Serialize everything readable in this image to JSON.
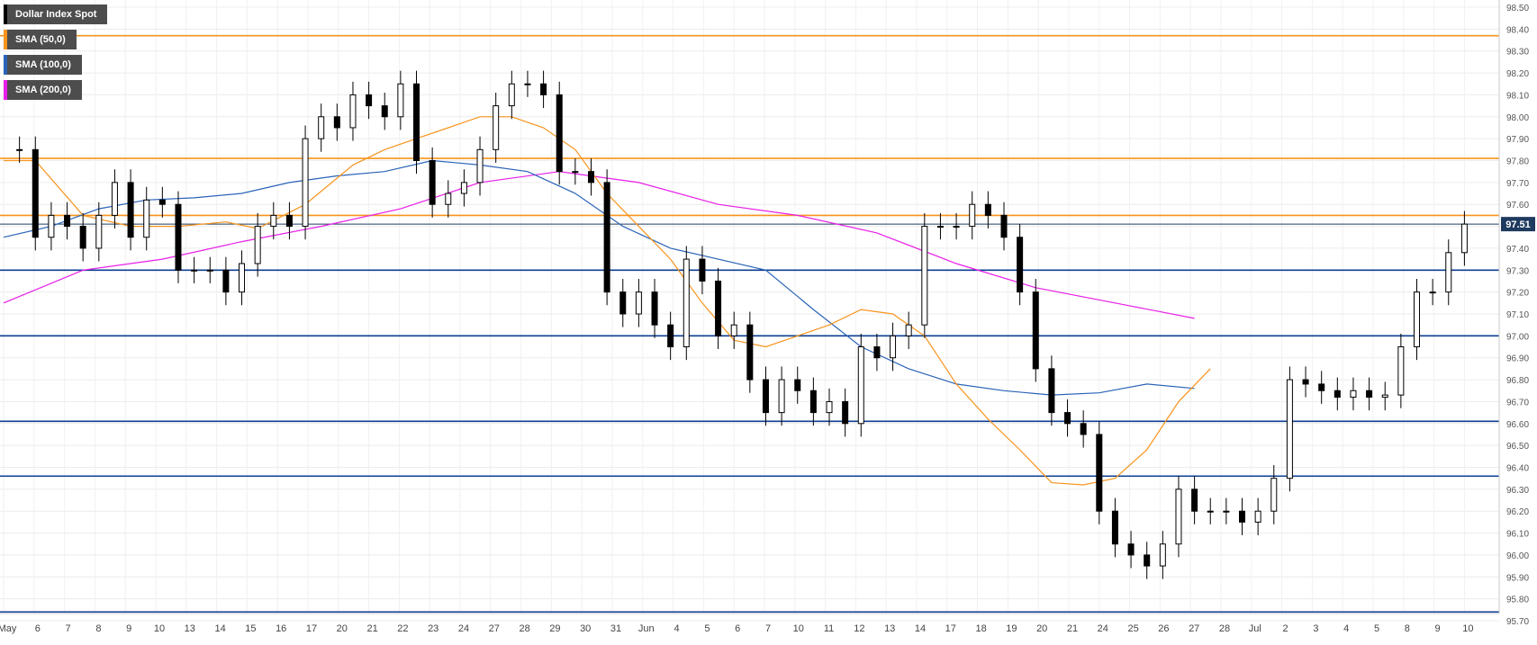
{
  "legend": {
    "main": "Dollar Index Spot",
    "sma50": "SMA (50,0)",
    "sma100": "SMA (100,0)",
    "sma200": "SMA (200,0)"
  },
  "colors": {
    "sma50": "#f7941d",
    "sma100": "#2a63b8",
    "sma200": "#e81ee8",
    "resistance": "#f7941d",
    "support": "#0c3f93",
    "current": "#1f3a5f",
    "candle_up": "#ffffff",
    "candle_down": "#000000"
  },
  "chart_data": {
    "type": "candlestick",
    "title": "Dollar Index Spot",
    "ylim": [
      95.7,
      98.5
    ],
    "y_ticks": [
      "98.50",
      "98.40",
      "98.30",
      "98.20",
      "98.10",
      "98.00",
      "97.90",
      "97.80",
      "97.70",
      "97.60",
      "97.50",
      "97.40",
      "97.30",
      "97.20",
      "97.10",
      "97.00",
      "96.90",
      "96.80",
      "96.70",
      "96.60",
      "96.50",
      "96.40",
      "96.30",
      "96.20",
      "96.10",
      "96.00",
      "95.90",
      "95.80",
      "95.70"
    ],
    "x_ticks": [
      "May",
      "6",
      "7",
      "8",
      "9",
      "10",
      "13",
      "14",
      "15",
      "16",
      "17",
      "20",
      "21",
      "22",
      "23",
      "24",
      "27",
      "28",
      "29",
      "30",
      "31",
      "Jun",
      "4",
      "5",
      "6",
      "7",
      "10",
      "11",
      "12",
      "13",
      "14",
      "17",
      "18",
      "19",
      "20",
      "21",
      "24",
      "25",
      "26",
      "27",
      "28",
      "Jul",
      "2",
      "3",
      "4",
      "5",
      "8",
      "9",
      "10"
    ],
    "current_price": 97.51,
    "current_price_label": "97.51",
    "horizontal_levels": [
      {
        "kind": "resistance",
        "value": 98.37
      },
      {
        "kind": "resistance",
        "value": 97.81
      },
      {
        "kind": "resistance",
        "value": 97.55
      },
      {
        "kind": "support",
        "value": 97.3
      },
      {
        "kind": "support",
        "value": 97.0
      },
      {
        "kind": "support",
        "value": 96.61
      },
      {
        "kind": "support",
        "value": 96.36
      },
      {
        "kind": "support",
        "value": 95.74
      }
    ],
    "price_path": [
      [
        0,
        97.85
      ],
      [
        1,
        97.85
      ],
      [
        2,
        97.45
      ],
      [
        3,
        97.55
      ],
      [
        4,
        97.5
      ],
      [
        5,
        97.4
      ],
      [
        6,
        97.55
      ],
      [
        7,
        97.7
      ],
      [
        8,
        97.45
      ],
      [
        9,
        97.62
      ],
      [
        10,
        97.6
      ],
      [
        11,
        97.3
      ],
      [
        12,
        97.3
      ],
      [
        13,
        97.3
      ],
      [
        14,
        97.2
      ],
      [
        15,
        97.33
      ],
      [
        16,
        97.5
      ],
      [
        17,
        97.55
      ],
      [
        18,
        97.5
      ],
      [
        19,
        97.9
      ],
      [
        20,
        98.0
      ],
      [
        21,
        97.95
      ],
      [
        22,
        98.1
      ],
      [
        23,
        98.05
      ],
      [
        24,
        98.0
      ],
      [
        25,
        98.15
      ],
      [
        26,
        97.8
      ],
      [
        27,
        97.6
      ],
      [
        28,
        97.65
      ],
      [
        29,
        97.7
      ],
      [
        30,
        97.85
      ],
      [
        31,
        98.05
      ],
      [
        32,
        98.15
      ],
      [
        33,
        98.15
      ],
      [
        34,
        98.1
      ],
      [
        35,
        97.75
      ],
      [
        36,
        97.75
      ],
      [
        37,
        97.7
      ],
      [
        38,
        97.2
      ],
      [
        39,
        97.1
      ],
      [
        40,
        97.2
      ],
      [
        41,
        97.05
      ],
      [
        42,
        96.95
      ],
      [
        43,
        97.35
      ],
      [
        44,
        97.25
      ],
      [
        45,
        97.0
      ],
      [
        46,
        97.05
      ],
      [
        47,
        96.8
      ],
      [
        48,
        96.65
      ],
      [
        49,
        96.8
      ],
      [
        50,
        96.75
      ],
      [
        51,
        96.65
      ],
      [
        52,
        96.7
      ],
      [
        53,
        96.6
      ],
      [
        54,
        96.95
      ],
      [
        55,
        96.9
      ],
      [
        56,
        97.0
      ],
      [
        57,
        97.05
      ],
      [
        58,
        97.5
      ],
      [
        59,
        97.5
      ],
      [
        60,
        97.5
      ],
      [
        61,
        97.6
      ],
      [
        62,
        97.55
      ],
      [
        63,
        97.45
      ],
      [
        64,
        97.2
      ],
      [
        65,
        96.85
      ],
      [
        66,
        96.65
      ],
      [
        67,
        96.6
      ],
      [
        68,
        96.55
      ],
      [
        69,
        96.2
      ],
      [
        70,
        96.05
      ],
      [
        71,
        96.0
      ],
      [
        72,
        95.95
      ],
      [
        73,
        96.05
      ],
      [
        74,
        96.3
      ],
      [
        75,
        96.2
      ],
      [
        76,
        96.2
      ],
      [
        77,
        96.2
      ],
      [
        78,
        96.15
      ],
      [
        79,
        96.2
      ],
      [
        80,
        96.35
      ],
      [
        81,
        96.8
      ],
      [
        82,
        96.78
      ],
      [
        83,
        96.75
      ],
      [
        84,
        96.72
      ],
      [
        85,
        96.75
      ],
      [
        86,
        96.72
      ],
      [
        87,
        96.73
      ],
      [
        88,
        96.95
      ],
      [
        89,
        97.2
      ],
      [
        90,
        97.2
      ],
      [
        91,
        97.38
      ],
      [
        92,
        97.51
      ]
    ],
    "sma50_path": [
      [
        0,
        97.8
      ],
      [
        2,
        97.8
      ],
      [
        5,
        97.55
      ],
      [
        8,
        97.5
      ],
      [
        11,
        97.5
      ],
      [
        14,
        97.52
      ],
      [
        16,
        97.49
      ],
      [
        19,
        97.6
      ],
      [
        22,
        97.78
      ],
      [
        24,
        97.85
      ],
      [
        26,
        97.9
      ],
      [
        28,
        97.95
      ],
      [
        30,
        98.0
      ],
      [
        32,
        98.0
      ],
      [
        34,
        97.95
      ],
      [
        36,
        97.85
      ],
      [
        38,
        97.65
      ],
      [
        40,
        97.5
      ],
      [
        42,
        97.35
      ],
      [
        44,
        97.15
      ],
      [
        46,
        96.98
      ],
      [
        48,
        96.95
      ],
      [
        50,
        97.0
      ],
      [
        52,
        97.05
      ],
      [
        54,
        97.12
      ],
      [
        56,
        97.1
      ],
      [
        58,
        97.0
      ],
      [
        60,
        96.78
      ],
      [
        62,
        96.62
      ],
      [
        64,
        96.48
      ],
      [
        66,
        96.33
      ],
      [
        68,
        96.32
      ],
      [
        70,
        96.35
      ],
      [
        72,
        96.48
      ],
      [
        74,
        96.7
      ],
      [
        76,
        96.85
      ]
    ],
    "sma100_path": [
      [
        0,
        97.45
      ],
      [
        3,
        97.5
      ],
      [
        6,
        97.58
      ],
      [
        9,
        97.62
      ],
      [
        12,
        97.63
      ],
      [
        15,
        97.65
      ],
      [
        18,
        97.7
      ],
      [
        21,
        97.73
      ],
      [
        24,
        97.75
      ],
      [
        27,
        97.8
      ],
      [
        30,
        97.78
      ],
      [
        33,
        97.75
      ],
      [
        36,
        97.65
      ],
      [
        39,
        97.5
      ],
      [
        42,
        97.4
      ],
      [
        45,
        97.35
      ],
      [
        48,
        97.3
      ],
      [
        51,
        97.12
      ],
      [
        54,
        96.95
      ],
      [
        57,
        96.85
      ],
      [
        60,
        96.78
      ],
      [
        63,
        96.75
      ],
      [
        66,
        96.73
      ],
      [
        69,
        96.74
      ],
      [
        72,
        96.78
      ],
      [
        75,
        96.76
      ]
    ],
    "sma200_path": [
      [
        0,
        97.15
      ],
      [
        5,
        97.3
      ],
      [
        10,
        97.35
      ],
      [
        15,
        97.43
      ],
      [
        20,
        97.5
      ],
      [
        25,
        97.58
      ],
      [
        30,
        97.7
      ],
      [
        35,
        97.75
      ],
      [
        40,
        97.7
      ],
      [
        45,
        97.6
      ],
      [
        50,
        97.55
      ],
      [
        55,
        97.47
      ],
      [
        60,
        97.33
      ],
      [
        65,
        97.22
      ],
      [
        70,
        97.15
      ],
      [
        75,
        97.08
      ]
    ]
  }
}
